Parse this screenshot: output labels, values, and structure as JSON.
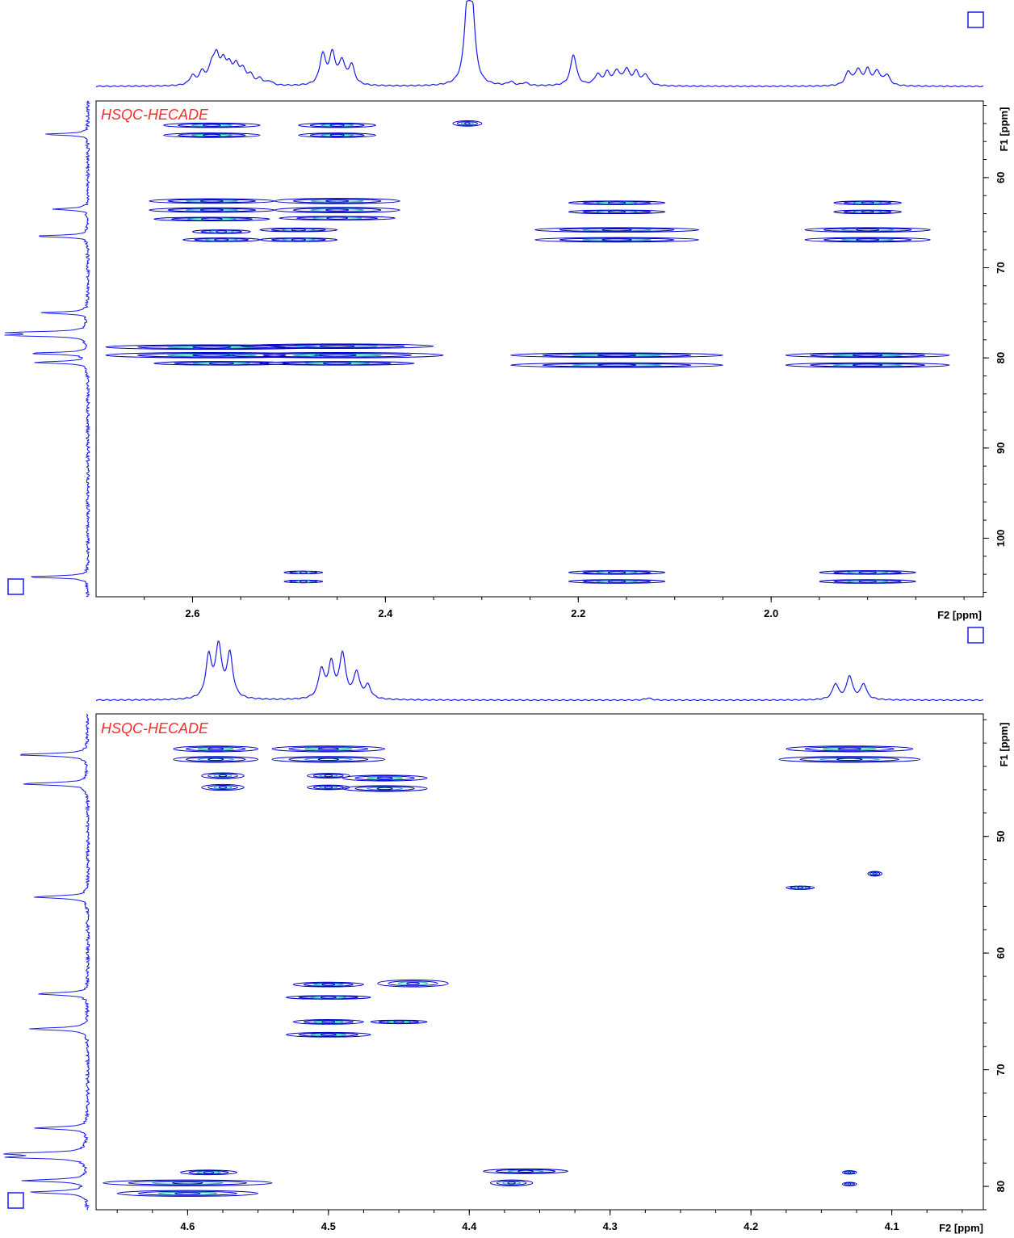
{
  "colors": {
    "contour": "#0000cc",
    "contour_neg": "#20b0a0",
    "trace": "#1a1aee",
    "title": "#ff2a2a",
    "frame": "#000000"
  },
  "chart_data": [
    {
      "type": "heatmap",
      "title": "HSQC-HECADE",
      "xlabel": "F2 [ppm]",
      "ylabel": "F1 [ppm]",
      "xlim": [
        2.7,
        1.78
      ],
      "ylim": [
        51.5,
        106.5
      ],
      "xticks": [
        2.6,
        2.4,
        2.2,
        2.0
      ],
      "xtick_labels": [
        "2.6",
        "2.4",
        "2.2",
        "2.0"
      ],
      "yticks": [
        60,
        70,
        80,
        90,
        100
      ],
      "ytick_labels": [
        "60",
        "70",
        "80",
        "90",
        "100"
      ],
      "f2_projection_peaks": [
        {
          "x": 2.6,
          "h": 0.12
        },
        {
          "x": 2.59,
          "h": 0.16
        },
        {
          "x": 2.58,
          "h": 0.22
        },
        {
          "x": 2.575,
          "h": 0.32
        },
        {
          "x": 2.568,
          "h": 0.25
        },
        {
          "x": 2.562,
          "h": 0.2
        },
        {
          "x": 2.555,
          "h": 0.22
        },
        {
          "x": 2.548,
          "h": 0.18
        },
        {
          "x": 2.54,
          "h": 0.12
        },
        {
          "x": 2.53,
          "h": 0.08
        },
        {
          "x": 2.52,
          "h": 0.05
        },
        {
          "x": 2.465,
          "h": 0.4
        },
        {
          "x": 2.455,
          "h": 0.4
        },
        {
          "x": 2.445,
          "h": 0.3
        },
        {
          "x": 2.435,
          "h": 0.26
        },
        {
          "x": 2.315,
          "h": 1.0
        },
        {
          "x": 2.31,
          "h": 0.9
        },
        {
          "x": 2.27,
          "h": 0.05
        },
        {
          "x": 2.255,
          "h": 0.04
        },
        {
          "x": 2.205,
          "h": 0.42
        },
        {
          "x": 2.18,
          "h": 0.14
        },
        {
          "x": 2.17,
          "h": 0.16
        },
        {
          "x": 2.16,
          "h": 0.18
        },
        {
          "x": 2.15,
          "h": 0.2
        },
        {
          "x": 2.14,
          "h": 0.17
        },
        {
          "x": 2.13,
          "h": 0.14
        },
        {
          "x": 1.92,
          "h": 0.18
        },
        {
          "x": 1.91,
          "h": 0.2
        },
        {
          "x": 1.9,
          "h": 0.2
        },
        {
          "x": 1.89,
          "h": 0.18
        },
        {
          "x": 1.88,
          "h": 0.14
        }
      ],
      "f1_projection_peaks": [
        {
          "y": 55.2,
          "h": 0.55
        },
        {
          "y": 63.5,
          "h": 0.45
        },
        {
          "y": 66.5,
          "h": 0.7
        },
        {
          "y": 75.0,
          "h": 0.6
        },
        {
          "y": 77.2,
          "h": 1.0
        },
        {
          "y": 77.5,
          "h": 0.95
        },
        {
          "y": 79.5,
          "h": 0.75
        },
        {
          "y": 80.5,
          "h": 0.7
        },
        {
          "y": 104.3,
          "h": 0.8
        }
      ],
      "cross_peaks": [
        {
          "x": 2.58,
          "y": 54.2,
          "w": 0.1,
          "h": 0.5
        },
        {
          "x": 2.58,
          "y": 55.3,
          "w": 0.1,
          "h": 0.5
        },
        {
          "x": 2.45,
          "y": 54.2,
          "w": 0.08,
          "h": 0.5
        },
        {
          "x": 2.45,
          "y": 55.3,
          "w": 0.08,
          "h": 0.5
        },
        {
          "x": 2.315,
          "y": 54.0,
          "w": 0.03,
          "h": 0.6
        },
        {
          "x": 2.58,
          "y": 62.6,
          "w": 0.13,
          "h": 0.5
        },
        {
          "x": 2.58,
          "y": 63.6,
          "w": 0.13,
          "h": 0.5
        },
        {
          "x": 2.58,
          "y": 64.6,
          "w": 0.12,
          "h": 0.4
        },
        {
          "x": 2.57,
          "y": 66.0,
          "w": 0.06,
          "h": 0.4
        },
        {
          "x": 2.57,
          "y": 66.9,
          "w": 0.08,
          "h": 0.4
        },
        {
          "x": 2.45,
          "y": 62.6,
          "w": 0.13,
          "h": 0.6
        },
        {
          "x": 2.45,
          "y": 63.6,
          "w": 0.13,
          "h": 0.6
        },
        {
          "x": 2.45,
          "y": 64.5,
          "w": 0.12,
          "h": 0.4
        },
        {
          "x": 2.49,
          "y": 65.8,
          "w": 0.08,
          "h": 0.4
        },
        {
          "x": 2.49,
          "y": 66.9,
          "w": 0.08,
          "h": 0.4
        },
        {
          "x": 2.16,
          "y": 62.8,
          "w": 0.1,
          "h": 0.4
        },
        {
          "x": 2.16,
          "y": 63.8,
          "w": 0.1,
          "h": 0.4
        },
        {
          "x": 2.16,
          "y": 65.8,
          "w": 0.17,
          "h": 0.5
        },
        {
          "x": 2.16,
          "y": 66.9,
          "w": 0.17,
          "h": 0.5
        },
        {
          "x": 1.9,
          "y": 62.8,
          "w": 0.07,
          "h": 0.4
        },
        {
          "x": 1.9,
          "y": 63.8,
          "w": 0.07,
          "h": 0.4
        },
        {
          "x": 1.9,
          "y": 65.8,
          "w": 0.13,
          "h": 0.5
        },
        {
          "x": 1.9,
          "y": 66.9,
          "w": 0.13,
          "h": 0.5
        },
        {
          "x": 2.58,
          "y": 78.8,
          "w": 0.22,
          "h": 0.5
        },
        {
          "x": 2.58,
          "y": 79.7,
          "w": 0.22,
          "h": 0.6
        },
        {
          "x": 2.57,
          "y": 80.6,
          "w": 0.14,
          "h": 0.4
        },
        {
          "x": 2.45,
          "y": 78.7,
          "w": 0.2,
          "h": 0.5
        },
        {
          "x": 2.45,
          "y": 79.7,
          "w": 0.22,
          "h": 0.6
        },
        {
          "x": 2.45,
          "y": 80.6,
          "w": 0.16,
          "h": 0.4
        },
        {
          "x": 2.16,
          "y": 79.7,
          "w": 0.22,
          "h": 0.5
        },
        {
          "x": 2.16,
          "y": 80.8,
          "w": 0.22,
          "h": 0.5
        },
        {
          "x": 1.9,
          "y": 79.7,
          "w": 0.17,
          "h": 0.5
        },
        {
          "x": 1.9,
          "y": 80.8,
          "w": 0.17,
          "h": 0.5
        },
        {
          "x": 2.485,
          "y": 103.8,
          "w": 0.04,
          "h": 0.3
        },
        {
          "x": 2.485,
          "y": 104.8,
          "w": 0.04,
          "h": 0.3
        },
        {
          "x": 2.16,
          "y": 103.8,
          "w": 0.1,
          "h": 0.4
        },
        {
          "x": 2.16,
          "y": 104.8,
          "w": 0.1,
          "h": 0.4
        },
        {
          "x": 1.9,
          "y": 103.8,
          "w": 0.1,
          "h": 0.4
        },
        {
          "x": 1.9,
          "y": 104.8,
          "w": 0.1,
          "h": 0.4
        }
      ]
    },
    {
      "type": "heatmap",
      "title": "HSQC-HECADE",
      "xlabel": "F2 [ppm]",
      "ylabel": "F1 [ppm]",
      "xlim": [
        4.665,
        4.035
      ],
      "ylim": [
        39.5,
        82.0
      ],
      "xticks": [
        4.6,
        4.5,
        4.4,
        4.3,
        4.2,
        4.1
      ],
      "xtick_labels": [
        "4.6",
        "4.5",
        "4.4",
        "4.3",
        "4.2",
        "4.1"
      ],
      "yticks": [
        50,
        60,
        70,
        80
      ],
      "ytick_labels": [
        "50",
        "60",
        "70",
        "80"
      ],
      "f2_projection_peaks": [
        {
          "x": 4.585,
          "h": 0.8
        },
        {
          "x": 4.578,
          "h": 1.0
        },
        {
          "x": 4.57,
          "h": 0.85
        },
        {
          "x": 4.505,
          "h": 0.55
        },
        {
          "x": 4.498,
          "h": 0.65
        },
        {
          "x": 4.49,
          "h": 0.85
        },
        {
          "x": 4.48,
          "h": 0.5
        },
        {
          "x": 4.472,
          "h": 0.25
        },
        {
          "x": 4.273,
          "h": 0.04
        },
        {
          "x": 4.14,
          "h": 0.3
        },
        {
          "x": 4.13,
          "h": 0.45
        },
        {
          "x": 4.12,
          "h": 0.3
        }
      ],
      "f1_projection_peaks": [
        {
          "y": 43.0,
          "h": 0.9
        },
        {
          "y": 45.5,
          "h": 0.85
        },
        {
          "y": 55.2,
          "h": 0.7
        },
        {
          "y": 63.5,
          "h": 0.65
        },
        {
          "y": 66.5,
          "h": 0.75
        },
        {
          "y": 75.0,
          "h": 0.65
        },
        {
          "y": 77.2,
          "h": 1.0
        },
        {
          "y": 77.5,
          "h": 0.95
        },
        {
          "y": 79.5,
          "h": 0.8
        },
        {
          "y": 80.5,
          "h": 0.75
        }
      ],
      "cross_peaks": [
        {
          "x": 4.58,
          "y": 42.5,
          "w": 0.06,
          "h": 0.5
        },
        {
          "x": 4.58,
          "y": 43.4,
          "w": 0.06,
          "h": 0.5
        },
        {
          "x": 4.575,
          "y": 44.8,
          "w": 0.03,
          "h": 0.5
        },
        {
          "x": 4.575,
          "y": 45.8,
          "w": 0.03,
          "h": 0.5
        },
        {
          "x": 4.5,
          "y": 42.5,
          "w": 0.08,
          "h": 0.5
        },
        {
          "x": 4.5,
          "y": 43.4,
          "w": 0.08,
          "h": 0.5
        },
        {
          "x": 4.5,
          "y": 44.8,
          "w": 0.03,
          "h": 0.4
        },
        {
          "x": 4.5,
          "y": 45.8,
          "w": 0.03,
          "h": 0.4
        },
        {
          "x": 4.46,
          "y": 45.0,
          "w": 0.06,
          "h": 0.5
        },
        {
          "x": 4.46,
          "y": 45.9,
          "w": 0.06,
          "h": 0.5
        },
        {
          "x": 4.13,
          "y": 42.5,
          "w": 0.09,
          "h": 0.5
        },
        {
          "x": 4.13,
          "y": 43.4,
          "w": 0.1,
          "h": 0.5
        },
        {
          "x": 4.165,
          "y": 54.4,
          "w": 0.02,
          "h": 0.3
        },
        {
          "x": 4.112,
          "y": 53.2,
          "w": 0.01,
          "h": 0.4
        },
        {
          "x": 4.5,
          "y": 62.7,
          "w": 0.05,
          "h": 0.4
        },
        {
          "x": 4.5,
          "y": 63.8,
          "w": 0.06,
          "h": 0.3
        },
        {
          "x": 4.44,
          "y": 62.6,
          "w": 0.05,
          "h": 0.6
        },
        {
          "x": 4.5,
          "y": 65.9,
          "w": 0.05,
          "h": 0.4
        },
        {
          "x": 4.5,
          "y": 67.0,
          "w": 0.06,
          "h": 0.4
        },
        {
          "x": 4.45,
          "y": 65.9,
          "w": 0.04,
          "h": 0.3
        },
        {
          "x": 4.585,
          "y": 78.8,
          "w": 0.04,
          "h": 0.4
        },
        {
          "x": 4.6,
          "y": 79.7,
          "w": 0.12,
          "h": 0.5
        },
        {
          "x": 4.6,
          "y": 80.6,
          "w": 0.1,
          "h": 0.5
        },
        {
          "x": 4.36,
          "y": 78.7,
          "w": 0.06,
          "h": 0.4
        },
        {
          "x": 4.37,
          "y": 79.7,
          "w": 0.03,
          "h": 0.5
        },
        {
          "x": 4.13,
          "y": 78.8,
          "w": 0.01,
          "h": 0.3
        },
        {
          "x": 4.13,
          "y": 79.8,
          "w": 0.01,
          "h": 0.3
        }
      ]
    }
  ]
}
